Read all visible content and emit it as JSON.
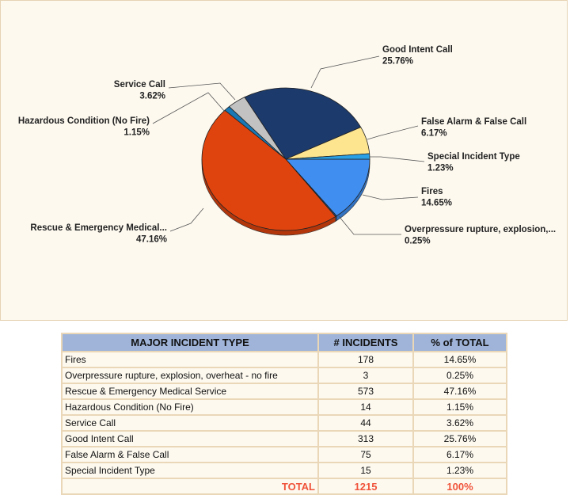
{
  "chart_data": {
    "type": "pie",
    "style": "3d",
    "categories": [
      "Fires",
      "Overpressure rupture, explosion, overheat - no fire",
      "Rescue & Emergency Medical Service",
      "Hazardous Condition (No Fire)",
      "Service Call",
      "Good Intent Call",
      "False Alarm & False Call",
      "Special Incident Type"
    ],
    "values": [
      178,
      3,
      573,
      14,
      44,
      313,
      75,
      15
    ],
    "slice_labels": [
      "Fires",
      "Overpressure  rupture,  explosion,...",
      "Rescue & Emergency Medical...",
      "Hazardous Condition (No Fire)",
      "Service Call",
      "Good Intent Call",
      "False Alarm & False Call",
      "Special Incident Type"
    ],
    "percent_labels": [
      "14.65%",
      "0.25%",
      "47.16%",
      "1.15%",
      "3.62%",
      "25.76%",
      "6.17%",
      "1.23%"
    ],
    "colors": [
      "#3f8ef0",
      "#2b4e7e",
      "#e0440e",
      "#1a78b4",
      "#c2c2c2",
      "#1c3a6b",
      "#fde590",
      "#2aa0e6"
    ]
  },
  "table": {
    "headers": [
      "MAJOR INCIDENT TYPE",
      "# INCIDENTS",
      "% of TOTAL"
    ],
    "rows": [
      [
        "Fires",
        "178",
        "14.65%"
      ],
      [
        "Overpressure rupture, explosion, overheat - no fire",
        "3",
        "0.25%"
      ],
      [
        "Rescue & Emergency Medical Service",
        "573",
        "47.16%"
      ],
      [
        "Hazardous Condition (No Fire)",
        "14",
        "1.15%"
      ],
      [
        "Service Call",
        "44",
        "3.62%"
      ],
      [
        "Good Intent Call",
        "313",
        "25.76%"
      ],
      [
        "False Alarm & False Call",
        "75",
        "6.17%"
      ],
      [
        "Special Incident Type",
        "15",
        "1.23%"
      ]
    ],
    "total": [
      "TOTAL",
      "1215",
      "100%"
    ]
  }
}
